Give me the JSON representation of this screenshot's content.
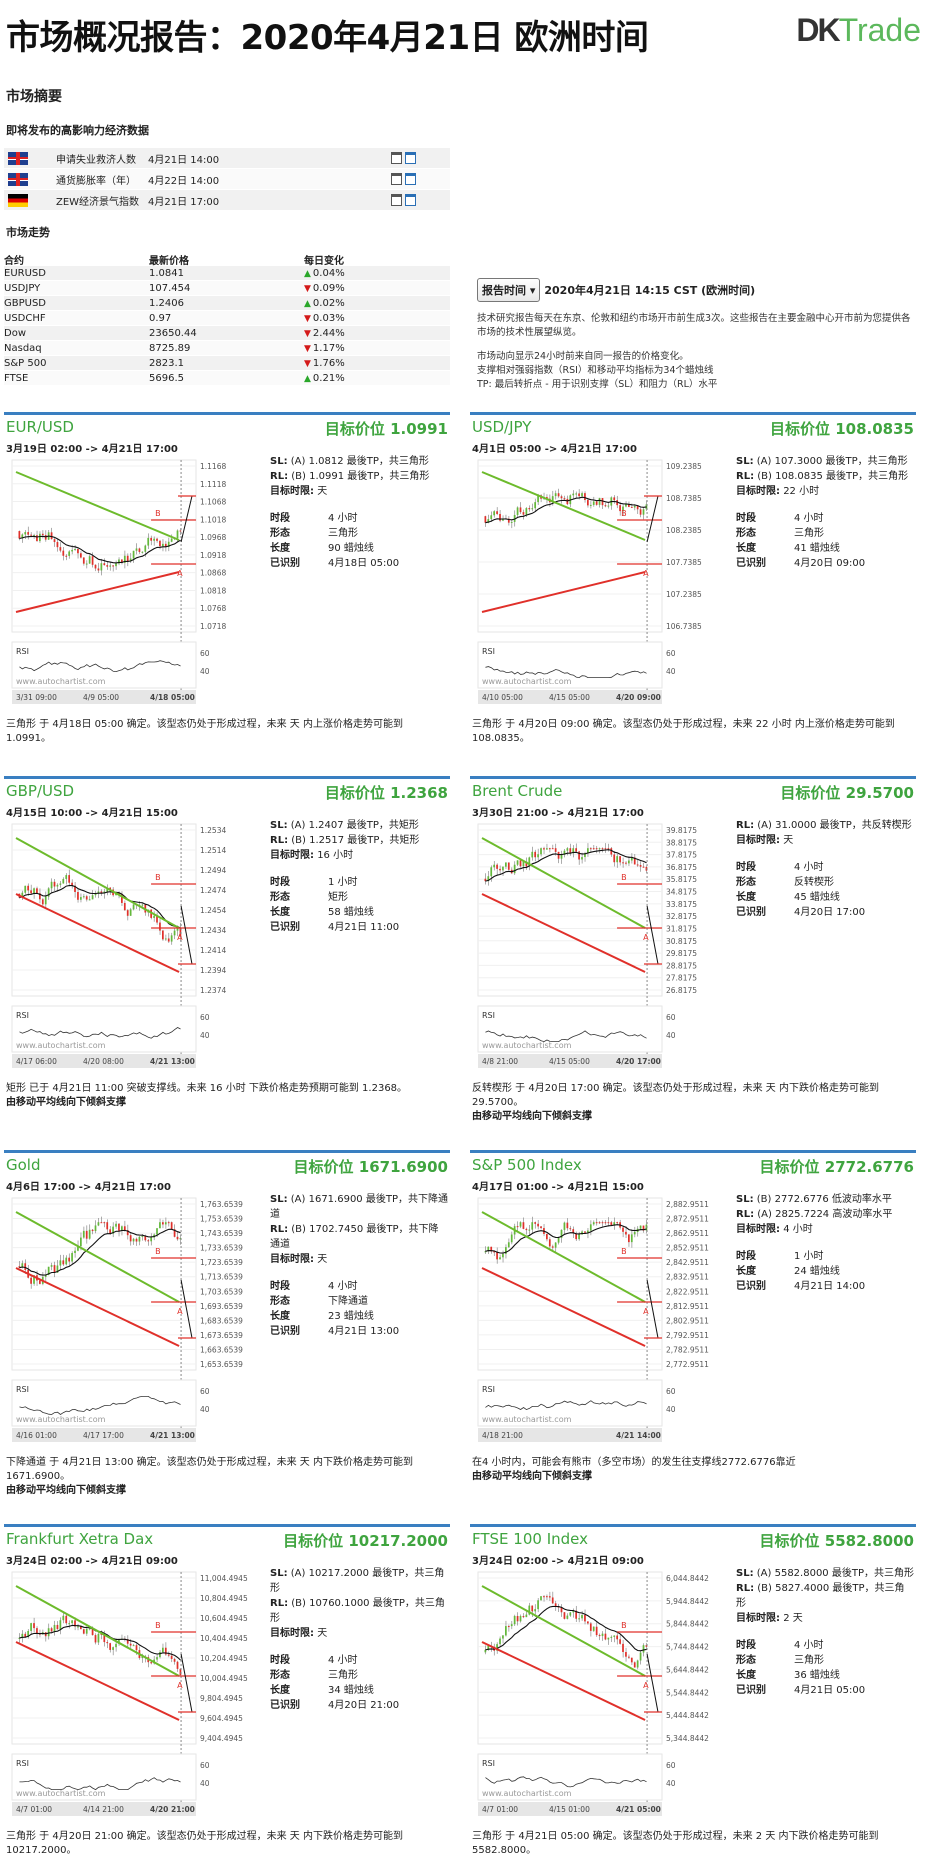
{
  "header": {
    "title": "市场概况报告：2020年4月21日 欧洲时间",
    "logo_pre": "DK",
    "logo_post": "Trade"
  },
  "summary": {
    "heading": "市场摘要",
    "events_heading": "即将发布的高影响力经济数据",
    "events": [
      {
        "flag": "uk-flag-icon",
        "name": "申请失业救济人数",
        "time": "4月21日 14:00"
      },
      {
        "flag": "uk-flag-icon",
        "name": "通货膨胀率（年）",
        "time": "4月22日 14:00"
      },
      {
        "flag": "de-flag-icon",
        "name": "ZEW经济景气指数",
        "time": "4月21日 17:00"
      }
    ],
    "markets_heading": "市场走势",
    "markets_columns": [
      "合约",
      "最新价格",
      "每日变化"
    ],
    "markets": [
      {
        "symbol": "EURUSD",
        "price": "1.0841",
        "dir": "up",
        "change": "0.04%"
      },
      {
        "symbol": "USDJPY",
        "price": "107.454",
        "dir": "down",
        "change": "0.09%"
      },
      {
        "symbol": "GBPUSD",
        "price": "1.2406",
        "dir": "up",
        "change": "0.02%"
      },
      {
        "symbol": "USDCHF",
        "price": "0.97",
        "dir": "down",
        "change": "0.03%"
      },
      {
        "symbol": "Dow",
        "price": "23650.44",
        "dir": "down",
        "change": "2.44%"
      },
      {
        "symbol": "Nasdaq",
        "price": "8725.89",
        "dir": "down",
        "change": "1.17%"
      },
      {
        "symbol": "S&P 500",
        "price": "2823.1",
        "dir": "down",
        "change": "1.76%"
      },
      {
        "symbol": "FTSE",
        "price": "5696.5",
        "dir": "up",
        "change": "0.21%"
      }
    ],
    "report_time_button": "报告时间",
    "report_time_value": "2020年4月21日 14:15 CST (欧洲时间)",
    "intro_lines": [
      "技术研究报告每天在东京、伦敦和纽约市场开市前生成3次。这些报告在主要金融中心开市前为您提供各市场的技术性展望纵览。",
      "",
      "市场动向显示24小时前来自同一报告的价格变化。",
      "支撑相对强弱指数（RSI）和移动平均指标为34个蜡烛线",
      "TP: 最后转折点 - 用于识别支撑（SL）和阻力（RL）水平"
    ]
  },
  "labels": {
    "target_prefix": "目标价位",
    "period": "时段",
    "shape": "形态",
    "length": "长度",
    "identified": "已识别",
    "target_time": "目标时限:",
    "rsi": "RSI",
    "watermark": "www.autochartist.com"
  },
  "panels": [
    {
      "name": "EUR/USD",
      "target": "1.0991",
      "range": "3月19日 02:00 -> 4月21日 17:00",
      "sl": "(A) 1.0812 最後TP，共三角形",
      "rl": "(B) 1.0991 最後TP，共三角形",
      "horizon": "天",
      "period": "4 小时",
      "shape": "三角形",
      "length": "90 蜡烛线",
      "identified": "4月18日 05:00",
      "desc": "三角形 于 4月18日 05:00 确定。该型态仍处于形成过程，未来 天 内上涨价格走势可能到 1.0991。",
      "desc_bold": "",
      "y_ticks": [
        "1.1168",
        "1.1118",
        "1.1068",
        "1.1018",
        "1.0968",
        "1.0918",
        "1.0868",
        "1.0818",
        "1.0768",
        "1.0718"
      ],
      "x_ticks": [
        "3/31 09:00",
        "4/9 05:00",
        "4/18 05:00"
      ],
      "dir": "up"
    },
    {
      "name": "USD/JPY",
      "target": "108.0835",
      "range": "4月1日 05:00 -> 4月21日 17:00",
      "sl": "(A) 107.3000 最後TP，共三角形",
      "rl": "(B) 108.0835 最後TP，共三角形",
      "horizon": "22 小时",
      "period": "4 小时",
      "shape": "三角形",
      "length": "41 蜡烛线",
      "identified": "4月20日 09:00",
      "desc": "三角形 于 4月20日 09:00 确定。该型态仍处于形成过程，未来 22 小时 内上涨价格走势可能到 108.0835。",
      "desc_bold": "",
      "y_ticks": [
        "109.2385",
        "108.7385",
        "108.2385",
        "107.7385",
        "107.2385",
        "106.7385"
      ],
      "x_ticks": [
        "4/10 05:00",
        "4/15 05:00",
        "4/20 09:00"
      ],
      "dir": "up"
    },
    {
      "name": "GBP/USD",
      "target": "1.2368",
      "range": "4月15日 10:00 -> 4月21日 15:00",
      "sl": "(A) 1.2407 最後TP，共矩形",
      "rl": "(B) 1.2517 最後TP，共矩形",
      "horizon": "16 小时",
      "period": "1 小时",
      "shape": "矩形",
      "length": "58 蜡烛线",
      "identified": "4月21日 11:00",
      "desc": "矩形 已于 4月21日 11:00 突破支撑线。未来 16 小时 下跌价格走势预期可能到 1.2368。",
      "desc_bold": "由移动平均线向下倾斜支撑",
      "y_ticks": [
        "1.2534",
        "1.2514",
        "1.2494",
        "1.2474",
        "1.2454",
        "1.2434",
        "1.2414",
        "1.2394",
        "1.2374"
      ],
      "x_ticks": [
        "4/17 06:00",
        "4/20 08:00",
        "4/21 13:00"
      ],
      "dir": "down"
    },
    {
      "name": "Brent Crude",
      "target": "29.5700",
      "range": "3月30日 21:00 -> 4月21日 17:00",
      "sl": "",
      "rl": "(A) 31.0000 最後TP，共反转楔形",
      "horizon": "天",
      "period": "4 小时",
      "shape": "反转楔形",
      "length": "45 蜡烛线",
      "identified": "4月20日 17:00",
      "desc": "反转楔形 于 4月20日 17:00 确定。该型态仍处于形成过程，未来 天 内下跌价格走势可能到 29.5700。",
      "desc_bold": "由移动平均线向下倾斜支撑",
      "y_ticks": [
        "39.8175",
        "38.8175",
        "37.8175",
        "36.8175",
        "35.8175",
        "34.8175",
        "33.8175",
        "32.8175",
        "31.8175",
        "30.8175",
        "29.8175",
        "28.8175",
        "27.8175",
        "26.8175"
      ],
      "x_ticks": [
        "4/8 21:00",
        "4/15 05:00",
        "4/20 17:00"
      ],
      "dir": "down"
    },
    {
      "name": "Gold",
      "target": "1671.6900",
      "range": "4月6日 17:00 -> 4月21日 17:00",
      "sl": "(A) 1671.6900 最後TP，共下降通道",
      "rl": "(B) 1702.7450 最後TP，共下降通道",
      "horizon": "天",
      "period": "4 小时",
      "shape": "下降通道",
      "length": "23 蜡烛线",
      "identified": "4月21日 13:00",
      "desc": "下降通道 于 4月21日 13:00 确定。该型态仍处于形成过程，未来 天 内下跌价格走势可能到 1671.6900。",
      "desc_bold": "由移动平均线向下倾斜支撑",
      "y_ticks": [
        "1,763.6539",
        "1,753.6539",
        "1,743.6539",
        "1,733.6539",
        "1,723.6539",
        "1,713.6539",
        "1,703.6539",
        "1,693.6539",
        "1,683.6539",
        "1,673.6539",
        "1,663.6539",
        "1,653.6539"
      ],
      "x_ticks": [
        "4/16 01:00",
        "4/17 17:00",
        "4/21 13:00"
      ],
      "dir": "down"
    },
    {
      "name": "S&P 500 Index",
      "target": "2772.6776",
      "range": "4月17日 01:00 -> 4月21日 15:00",
      "sl": "(B) 2772.6776 低波动率水平",
      "rl": "(A) 2825.7224 高波动率水平",
      "horizon": "4 小时",
      "period": "1 小时",
      "shape": "",
      "length": "24 蜡烛线",
      "identified": "4月21日 14:00",
      "desc": "在4 小时内，可能会有熊市（多空市场）的发生往支撑线2772.6776靠近",
      "desc_bold": "由移动平均线向下倾斜支撑",
      "y_ticks": [
        "2,882.9511",
        "2,872.9511",
        "2,862.9511",
        "2,852.9511",
        "2,842.9511",
        "2,832.9511",
        "2,822.9511",
        "2,812.9511",
        "2,802.9511",
        "2,792.9511",
        "2,782.9511",
        "2,772.9511"
      ],
      "x_ticks": [
        "4/18 21:00",
        "4/21 14:00"
      ],
      "dir": "down"
    },
    {
      "name": "Frankfurt Xetra Dax",
      "target": "10217.2000",
      "range": "3月24日 02:00 -> 4月21日 09:00",
      "sl": "(A) 10217.2000 最後TP，共三角形",
      "rl": "(B) 10760.1000 最後TP，共三角形",
      "horizon": "天",
      "period": "4 小时",
      "shape": "三角形",
      "length": "34 蜡烛线",
      "identified": "4月20日 21:00",
      "desc": "三角形 于 4月20日 21:00 确定。该型态仍处于形成过程，未来 天 内下跌价格走势可能到 10217.2000。",
      "desc_bold": "",
      "y_ticks": [
        "11,004.4945",
        "10,804.4945",
        "10,604.4945",
        "10,404.4945",
        "10,204.4945",
        "10,004.4945",
        "9,804.4945",
        "9,604.4945",
        "9,404.4945"
      ],
      "x_ticks": [
        "4/7 01:00",
        "4/14 21:00",
        "4/20 21:00"
      ],
      "dir": "down"
    },
    {
      "name": "FTSE 100 Index",
      "target": "5582.8000",
      "range": "3月24日 02:00 -> 4月21日 09:00",
      "sl": "(A) 5582.8000 最後TP，共三角形",
      "rl": "(B) 5827.4000 最後TP，共三角形",
      "horizon": "2 天",
      "period": "4 小时",
      "shape": "三角形",
      "length": "36 蜡烛线",
      "identified": "4月21日 05:00",
      "desc": "三角形 于 4月21日 05:00 确定。该型态仍处于形成过程，未来 2 天 内下跌价格走势可能到 5582.8000。",
      "desc_bold": "",
      "y_ticks": [
        "6,044.8442",
        "5,944.8442",
        "5,844.8442",
        "5,744.8442",
        "5,644.8442",
        "5,544.8442",
        "5,444.8442",
        "5,344.8442"
      ],
      "x_ticks": [
        "4/7 01:00",
        "4/15 01:00",
        "4/21 05:00"
      ],
      "dir": "down"
    }
  ],
  "colors": {
    "accent_green": "#3fa43f",
    "up_candle": "#63b83b",
    "down_candle": "#e0302a",
    "divider": "#3a7fc1"
  }
}
